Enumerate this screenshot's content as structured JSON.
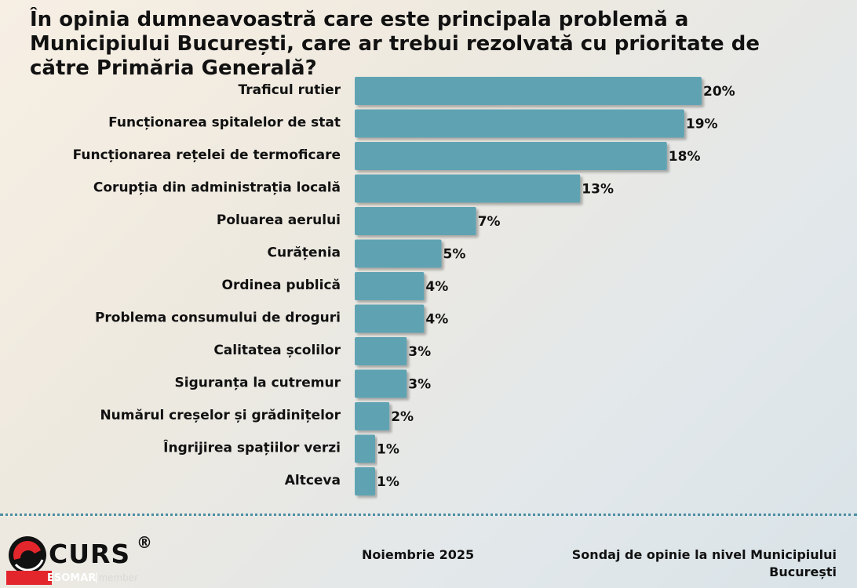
{
  "chart_data": {
    "type": "bar",
    "orientation": "horizontal",
    "title": "În opinia dumneavoastră care este principala problemă a Municipiului București, care ar trebui rezolvată cu prioritate de către Primăria Generală?",
    "categories": [
      "Traficul rutier",
      "Funcționarea spitalelor de stat",
      "Funcționarea rețelei de termoficare",
      "Corupția din administrația locală",
      "Poluarea aerului",
      "Curățenia",
      "Ordinea publică",
      "Problema consumului de droguri",
      "Calitatea școlilor",
      "Siguranța la cutremur",
      "Numărul creșelor și grădinițelor",
      "Îngrijirea spațiilor verzi",
      "Altceva"
    ],
    "values": [
      20,
      19,
      18,
      13,
      7,
      5,
      4,
      4,
      3,
      3,
      2,
      1,
      1
    ],
    "value_labels": [
      "20%",
      "19%",
      "18%",
      "13%",
      "7%",
      "5%",
      "4%",
      "4%",
      "3%",
      "3%",
      "2%",
      "1%",
      "1%"
    ],
    "xlim": [
      0,
      20
    ],
    "grid": false,
    "legend": "none",
    "bar_color": "#5fa3b3"
  },
  "footer": {
    "logo_text": "CURS",
    "logo_registered": "®",
    "esomar": "ESOMAR",
    "esomar_member": "member",
    "date": "Noiembrie 2025",
    "note": "Sondaj de opinie la nivel Municipiului București"
  },
  "colors": {
    "bar": "#5fa3b3",
    "divider": "#4b8ea2",
    "logo_red": "#e3262c"
  },
  "icons": [
    "curs-logo-icon"
  ]
}
